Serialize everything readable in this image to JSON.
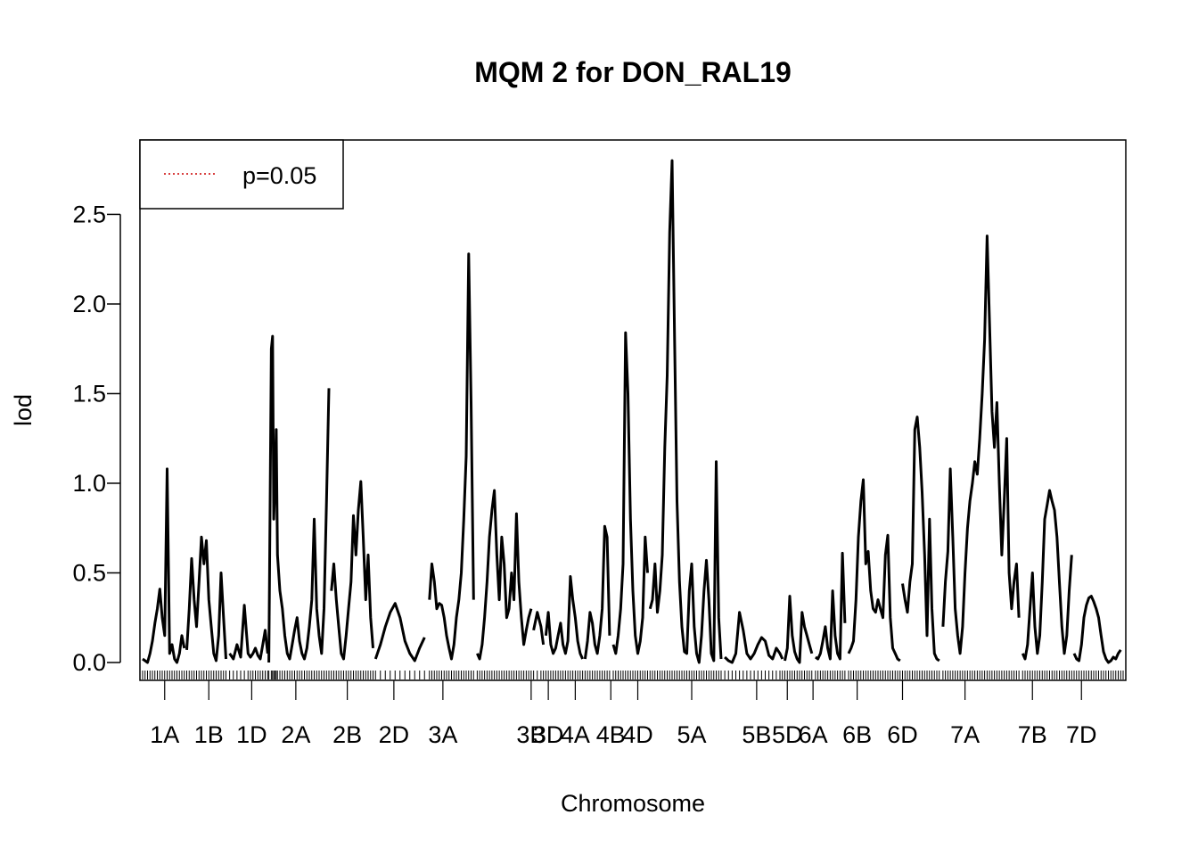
{
  "chart_data": {
    "type": "line",
    "title": "MQM 2 for DON_RAL19",
    "xlabel": "Chromosome",
    "ylabel": "lod",
    "ylim": [
      0,
      2.8
    ],
    "yticks": [
      "0.0",
      "0.5",
      "1.0",
      "1.5",
      "2.0",
      "2.5"
    ],
    "legend": {
      "label": "p=0.05",
      "position": "top-left",
      "line_color": "#cc0000",
      "line_style": "dotted"
    },
    "line_color": "#000000",
    "chromosomes": [
      {
        "name": "1A",
        "start": 0,
        "end": 35,
        "mid": 12
      },
      {
        "name": "1B",
        "start": 35,
        "end": 70,
        "mid": 48
      },
      {
        "name": "1D",
        "start": 70,
        "end": 103,
        "mid": 83
      },
      {
        "name": "2A",
        "start": 103,
        "end": 153,
        "mid": 119
      },
      {
        "name": "2B",
        "start": 153,
        "end": 190,
        "mid": 161
      },
      {
        "name": "2D",
        "start": 190,
        "end": 234,
        "mid": 199
      },
      {
        "name": "3A",
        "start": 234,
        "end": 272,
        "mid": 239
      },
      {
        "name": "3B",
        "start": 272,
        "end": 318,
        "mid": 311
      },
      {
        "name": "3D",
        "start": 318,
        "end": 328,
        "mid": 325
      },
      {
        "name": "4A",
        "start": 328,
        "end": 360,
        "mid": 347
      },
      {
        "name": "4B",
        "start": 360,
        "end": 383,
        "mid": 376
      },
      {
        "name": "4D",
        "start": 383,
        "end": 413,
        "mid": 398
      },
      {
        "name": "5A",
        "start": 413,
        "end": 474,
        "mid": 442
      },
      {
        "name": "5B",
        "start": 474,
        "end": 523,
        "mid": 495
      },
      {
        "name": "5D",
        "start": 523,
        "end": 548,
        "mid": 520
      },
      {
        "name": "6A",
        "start": 548,
        "end": 575,
        "mid": 541
      },
      {
        "name": "6B",
        "start": 575,
        "end": 619,
        "mid": 577
      },
      {
        "name": "6D",
        "start": 619,
        "end": 652,
        "mid": 614
      },
      {
        "name": "7A",
        "start": 652,
        "end": 717,
        "mid": 665
      },
      {
        "name": "7B",
        "start": 717,
        "end": 759,
        "mid": 720
      },
      {
        "name": "7D",
        "start": 759,
        "end": 800,
        "mid": 760
      }
    ],
    "series": [
      {
        "x": [
          0,
          2,
          4,
          6,
          8,
          10,
          12,
          14,
          16,
          18,
          20,
          22,
          24,
          26,
          28,
          30,
          32,
          34,
          36,
          38,
          40,
          42,
          44,
          46,
          48,
          50,
          52,
          54,
          56,
          58,
          60,
          62,
          64,
          66,
          68,
          71,
          74,
          77,
          80,
          83,
          86,
          88,
          90,
          92,
          94,
          96,
          98,
          100,
          102,
          103,
          105,
          106,
          107,
          108,
          109,
          110,
          112,
          114,
          116,
          118,
          120,
          122,
          124,
          126,
          128,
          130,
          132,
          134,
          136,
          138,
          140,
          142,
          144,
          146,
          148,
          150,
          152,
          154,
          156,
          158,
          160,
          162,
          164,
          166,
          168,
          170,
          172,
          174,
          176,
          178,
          180,
          182,
          184,
          186,
          188,
          190,
          194,
          198,
          202,
          206,
          210,
          214,
          218,
          222,
          226,
          230,
          234,
          236,
          238,
          240,
          242,
          244,
          246,
          248,
          250,
          252,
          254,
          256,
          258,
          260,
          262,
          264,
          266,
          268,
          270,
          273,
          275,
          277,
          279,
          281,
          283,
          285,
          287,
          289,
          291,
          293,
          295,
          297,
          299,
          301,
          303,
          305,
          307,
          309,
          311,
          313,
          315,
          317,
          319,
          322,
          325,
          327,
          329,
          331,
          333,
          335,
          337,
          339,
          341,
          343,
          345,
          347,
          349,
          351,
          353,
          355,
          357,
          359,
          361,
          363,
          365,
          367,
          369,
          371,
          373,
          375,
          377,
          379,
          381,
          384,
          386,
          388,
          390,
          392,
          394,
          396,
          398,
          400,
          402,
          404,
          406,
          408,
          410,
          412,
          414,
          416,
          418,
          420,
          422,
          424,
          426,
          428,
          430,
          432,
          434,
          436,
          438,
          440,
          442,
          444,
          446,
          448,
          450,
          452,
          454,
          456,
          458,
          460,
          462,
          464,
          466,
          468,
          470,
          472,
          475,
          478,
          481,
          484,
          487,
          490,
          493,
          496,
          499,
          502,
          505,
          508,
          511,
          514,
          517,
          520,
          522,
          524,
          526,
          528,
          530,
          532,
          534,
          536,
          538,
          540,
          542,
          544,
          546,
          549,
          551,
          553,
          555,
          557,
          559,
          561,
          563,
          565,
          567,
          569,
          571,
          573,
          576,
          578,
          580,
          582,
          584,
          586,
          588,
          590,
          592,
          594,
          596,
          598,
          600,
          602,
          604,
          606,
          608,
          610,
          612,
          614,
          616,
          618,
          620,
          622,
          624,
          626,
          628,
          630,
          632,
          634,
          636,
          638,
          640,
          642,
          644,
          646,
          648,
          650,
          653,
          655,
          657,
          659,
          661,
          663,
          665,
          667,
          669,
          671,
          673,
          675,
          677,
          679,
          681,
          683,
          685,
          687,
          689,
          691,
          693,
          695,
          697,
          699,
          701,
          703,
          705,
          707,
          709,
          711,
          713,
          715,
          718,
          720,
          722,
          724,
          726,
          728,
          730,
          732,
          734,
          736,
          738,
          740,
          742,
          744,
          746,
          748,
          750,
          752,
          754,
          756,
          758,
          760,
          762,
          764,
          766,
          768,
          770,
          772,
          774,
          776,
          778,
          780,
          782,
          784,
          786,
          788,
          790,
          792,
          794,
          796,
          798,
          800
        ],
        "y": [
          0.02,
          0.01,
          0.0,
          0.05,
          0.12,
          0.22,
          0.3,
          0.41,
          0.25,
          0.15,
          1.08,
          0.05,
          0.1,
          0.02,
          0.0,
          0.05,
          0.15,
          0.08,
          0.07,
          0.3,
          0.58,
          0.35,
          0.2,
          0.45,
          0.7,
          0.55,
          0.68,
          0.35,
          0.2,
          0.05,
          0.01,
          0.15,
          0.5,
          0.25,
          0.02,
          0.05,
          0.02,
          0.1,
          0.03,
          0.32,
          0.05,
          0.03,
          0.05,
          0.08,
          0.04,
          0.02,
          0.1,
          0.18,
          0.05,
          0.0,
          1.75,
          1.82,
          0.8,
          1.0,
          1.3,
          0.6,
          0.4,
          0.3,
          0.15,
          0.05,
          0.02,
          0.1,
          0.18,
          0.25,
          0.12,
          0.05,
          0.02,
          0.08,
          0.2,
          0.35,
          0.8,
          0.3,
          0.15,
          0.05,
          0.3,
          0.9,
          1.53,
          0.4,
          0.55,
          0.35,
          0.2,
          0.05,
          0.02,
          0.15,
          0.3,
          0.45,
          0.82,
          0.6,
          0.85,
          1.01,
          0.7,
          0.35,
          0.6,
          0.25,
          0.08,
          0.02,
          0.1,
          0.2,
          0.28,
          0.33,
          0.25,
          0.12,
          0.05,
          0.01,
          0.08,
          0.14,
          0.35,
          0.55,
          0.45,
          0.3,
          0.33,
          0.32,
          0.25,
          0.15,
          0.08,
          0.02,
          0.1,
          0.25,
          0.35,
          0.5,
          0.8,
          1.15,
          2.28,
          1.45,
          0.35,
          0.05,
          0.02,
          0.1,
          0.25,
          0.45,
          0.7,
          0.85,
          0.96,
          0.6,
          0.35,
          0.7,
          0.55,
          0.25,
          0.3,
          0.5,
          0.35,
          0.83,
          0.45,
          0.25,
          0.1,
          0.18,
          0.25,
          0.3,
          0.18,
          0.28,
          0.2,
          0.1,
          0.15,
          0.28,
          0.1,
          0.05,
          0.08,
          0.15,
          0.22,
          0.1,
          0.05,
          0.12,
          0.48,
          0.35,
          0.25,
          0.12,
          0.05,
          0.02,
          0.02,
          0.12,
          0.28,
          0.22,
          0.1,
          0.05,
          0.15,
          0.3,
          0.76,
          0.7,
          0.15,
          0.1,
          0.05,
          0.15,
          0.3,
          0.55,
          1.84,
          1.5,
          0.8,
          0.4,
          0.15,
          0.05,
          0.12,
          0.25,
          0.7,
          0.5,
          0.3,
          0.35,
          0.55,
          0.28,
          0.4,
          0.6,
          1.2,
          1.6,
          2.4,
          2.8,
          1.8,
          0.9,
          0.45,
          0.2,
          0.06,
          0.05,
          0.4,
          0.55,
          0.2,
          0.05,
          0.0,
          0.15,
          0.4,
          0.57,
          0.35,
          0.05,
          0.01,
          1.12,
          0.25,
          0.02,
          0.03,
          0.01,
          0.0,
          0.05,
          0.28,
          0.18,
          0.05,
          0.02,
          0.05,
          0.1,
          0.14,
          0.12,
          0.04,
          0.02,
          0.08,
          0.05,
          0.02,
          0.01,
          0.08,
          0.37,
          0.15,
          0.06,
          0.02,
          0.0,
          0.28,
          0.2,
          0.15,
          0.1,
          0.05,
          0.03,
          0.02,
          0.05,
          0.12,
          0.2,
          0.08,
          0.02,
          0.4,
          0.15,
          0.05,
          0.02,
          0.61,
          0.22,
          0.05,
          0.08,
          0.12,
          0.35,
          0.7,
          0.9,
          1.02,
          0.55,
          0.62,
          0.4,
          0.3,
          0.28,
          0.35,
          0.3,
          0.25,
          0.6,
          0.71,
          0.25,
          0.08,
          0.05,
          0.02,
          0.01,
          0.44,
          0.35,
          0.28,
          0.45,
          0.55,
          1.3,
          1.37,
          1.2,
          0.95,
          0.6,
          0.15,
          0.8,
          0.3,
          0.05,
          0.02,
          0.01,
          0.2,
          0.45,
          0.62,
          1.08,
          0.7,
          0.3,
          0.15,
          0.05,
          0.2,
          0.5,
          0.75,
          0.9,
          1.0,
          1.12,
          1.05,
          1.25,
          1.5,
          1.8,
          2.38,
          1.9,
          1.4,
          1.2,
          1.45,
          1.0,
          0.6,
          0.9,
          1.25,
          0.5,
          0.3,
          0.45,
          0.55,
          0.25,
          0.05,
          0.02,
          0.1,
          0.3,
          0.5,
          0.2,
          0.05,
          0.15,
          0.45,
          0.8,
          0.88,
          0.96,
          0.9,
          0.85,
          0.7,
          0.45,
          0.2,
          0.05,
          0.15,
          0.4,
          0.6,
          0.05,
          0.02,
          0.01,
          0.1,
          0.25,
          0.32,
          0.36,
          0.37,
          0.34,
          0.3,
          0.25,
          0.15,
          0.06,
          0.02,
          0.0,
          0.01,
          0.03,
          0.02,
          0.05,
          0.07,
          0.08
        ]
      }
    ]
  }
}
